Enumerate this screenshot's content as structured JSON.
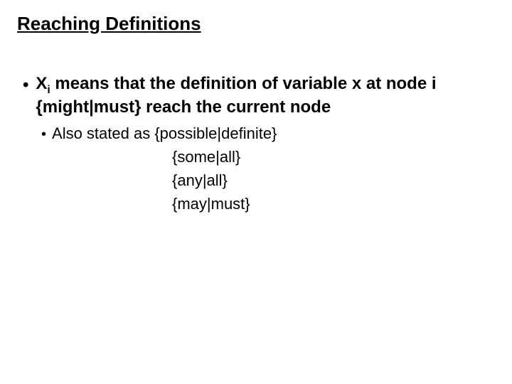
{
  "title": "Reaching Definitions",
  "main_bullet": {
    "pre": "X",
    "sub": "i",
    "post": " means that the definition of variable x at node i {might|must} reach the current node"
  },
  "sub_bullet_lead": "Also stated as ",
  "alt1": "{possible|definite}",
  "alt2": "{some|all}",
  "alt3": "{any|all}",
  "alt4": "{may|must}",
  "colors": {
    "background": "#ffffff",
    "text": "#000000"
  },
  "fonts": {
    "family": "Comic Sans MS",
    "title_size_pt": 20,
    "body_size_pt": 18,
    "sub_size_pt": 16
  }
}
